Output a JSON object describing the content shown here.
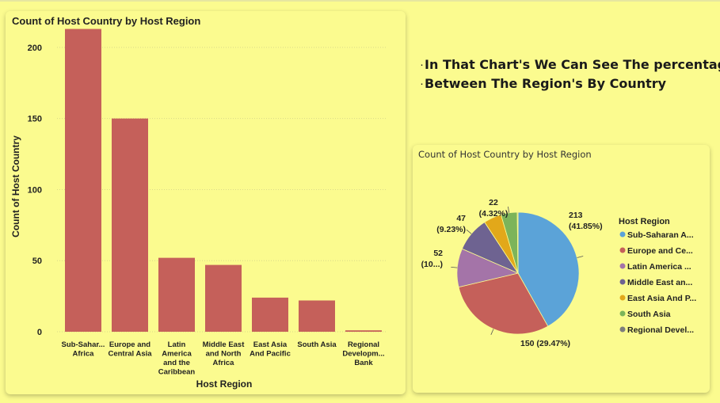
{
  "bar_card": {
    "title": "Count of Host Country by Host Region"
  },
  "pie_card": {
    "title": "Count of Host Country by Host Region",
    "legend_title": "Host Region"
  },
  "note": {
    "bullet": "·",
    "lines": [
      "In That Chart's We Can See The percentage",
      "Between The Region's By Country"
    ]
  },
  "chart_data": [
    {
      "type": "bar",
      "title": "Count of Host Country by Host Region",
      "xlabel": "Host Region",
      "ylabel": "Count of Host Country",
      "categories": [
        [
          "Sub-Sahar...",
          "Africa"
        ],
        [
          "Europe and",
          "Central Asia"
        ],
        [
          "Latin",
          "America",
          "and the",
          "Caribbean"
        ],
        [
          "Middle East",
          "and North",
          "Africa"
        ],
        [
          "East Asia",
          "And Pacific"
        ],
        [
          "South Asia"
        ],
        [
          "Regional",
          "Developm...",
          "Bank"
        ]
      ],
      "values": [
        213,
        150,
        52,
        47,
        24,
        22,
        1
      ],
      "ylim": [
        0,
        220
      ],
      "yticks": [
        0,
        50,
        100,
        150,
        200
      ],
      "bar_color": "#c5605a",
      "grid": true
    },
    {
      "type": "pie",
      "title": "Count of Host Country by Host Region",
      "legend_title": "Host Region",
      "legend_position": "right",
      "slices": [
        {
          "name": "Sub-Saharan A...",
          "value": 213,
          "label": [
            "213",
            "(41.85%)"
          ],
          "color": "#5ba3d8"
        },
        {
          "name": "Europe and Ce...",
          "value": 150,
          "label": [
            "150 (29.47%)"
          ],
          "color": "#c5605a"
        },
        {
          "name": "Latin America ...",
          "value": 52,
          "label": [
            "52",
            "(10...)"
          ],
          "color": "#a474a8"
        },
        {
          "name": "Middle East an...",
          "value": 47,
          "label": [
            "47",
            "(9.23%)"
          ],
          "color": "#6e6391"
        },
        {
          "name": "East Asia And P...",
          "value": 24,
          "label": [],
          "color": "#e2a81a"
        },
        {
          "name": "South Asia",
          "value": 22,
          "label": [
            "22",
            "(4.32%)"
          ],
          "color": "#7cb45a"
        },
        {
          "name": "Regional Devel...",
          "value": 1,
          "label": [],
          "color": "#7d7d7d"
        }
      ]
    }
  ]
}
